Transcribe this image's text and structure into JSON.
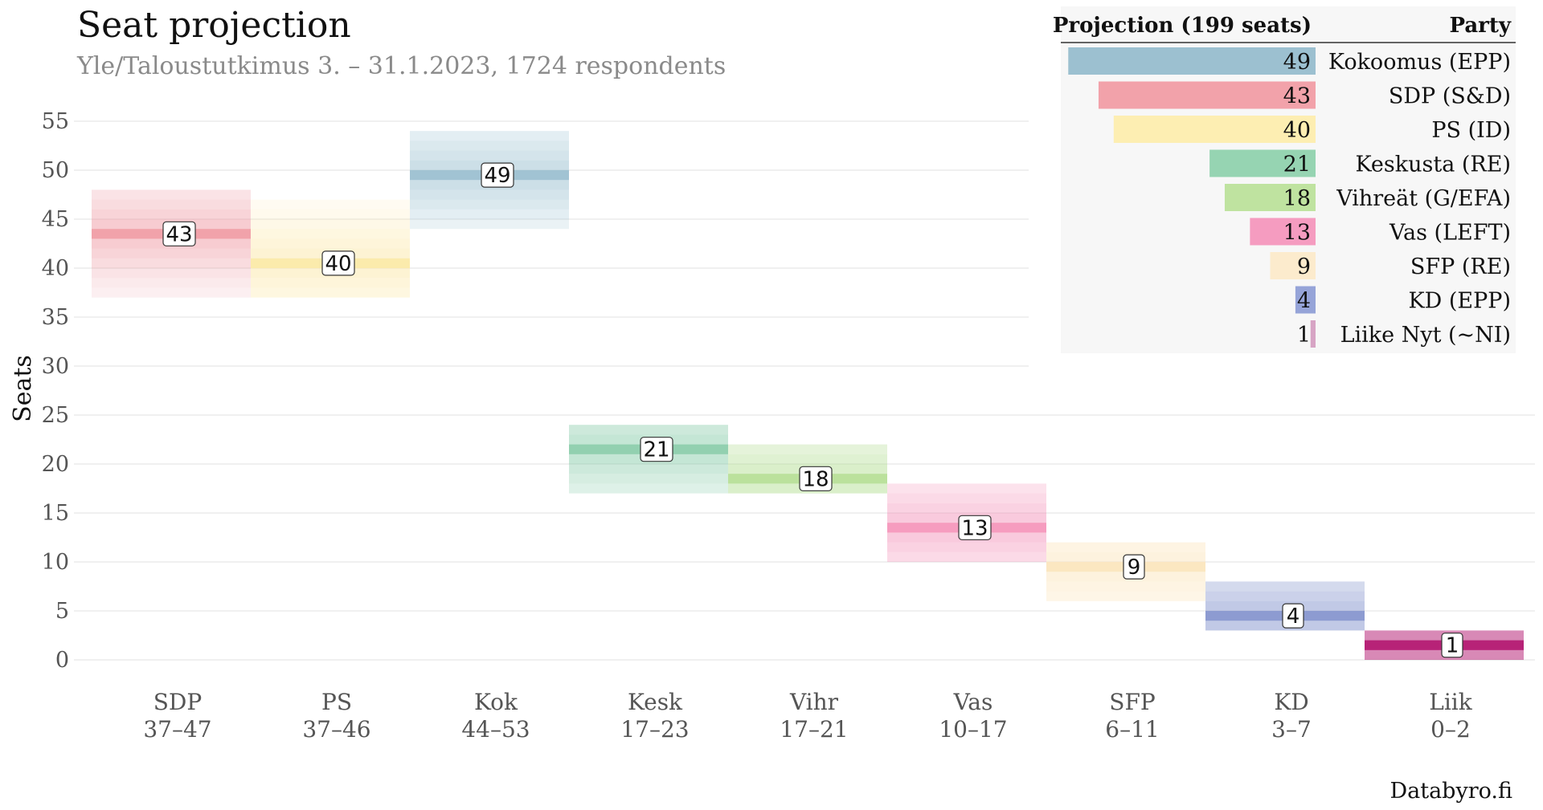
{
  "title": "Seat projection",
  "subtitle": "Yle/Taloustutkimus 3. – 31.1.2023, 1724 respondents",
  "source": "Databyro.fi",
  "chart_data": {
    "type": "bar",
    "ylabel": "Seats",
    "xlabel": "",
    "ylim": [
      0,
      56
    ],
    "yticks": [
      0,
      5,
      10,
      15,
      20,
      25,
      30,
      35,
      40,
      45,
      50,
      55
    ],
    "grid": true,
    "categories": [
      "SDP",
      "PS",
      "Kok",
      "Kesk",
      "Vihr",
      "Vas",
      "SFP",
      "KD",
      "Liik"
    ],
    "ranges": [
      "37–47",
      "37–46",
      "44–53",
      "17–23",
      "17–21",
      "10–17",
      "6–11",
      "3–7",
      "0–2"
    ],
    "values": [
      43,
      40,
      49,
      21,
      18,
      13,
      9,
      4,
      1
    ],
    "interval_low": [
      37,
      37,
      44,
      17,
      17,
      10,
      6,
      3,
      0
    ],
    "interval_high": [
      47,
      46,
      53,
      23,
      21,
      17,
      11,
      7,
      2
    ],
    "colors": [
      "#f0a0a8",
      "#fbeaaa",
      "#9fc2d2",
      "#8fcfae",
      "#b9e09a",
      "#f59abe",
      "#fbe6c0",
      "#8a99d0",
      "#b51e74"
    ]
  },
  "legend": {
    "header_left": "Projection (199 seats)",
    "header_right": "Party",
    "placement": "top-right",
    "max": 50,
    "rows": [
      {
        "party": "Kokoomus (EPP)",
        "value": 49,
        "color": "#9cc0d0"
      },
      {
        "party": "SDP (S&D)",
        "value": 43,
        "color": "#f2a2aa"
      },
      {
        "party": "PS (ID)",
        "value": 40,
        "color": "#fdeeb2"
      },
      {
        "party": "Keskusta (RE)",
        "value": 21,
        "color": "#96d4b2"
      },
      {
        "party": "Vihreät (G/EFA)",
        "value": 18,
        "color": "#bfe3a0"
      },
      {
        "party": "Vas (LEFT)",
        "value": 13,
        "color": "#f59cc0"
      },
      {
        "party": "SFP (RE)",
        "value": 9,
        "color": "#fcebcd"
      },
      {
        "party": "KD (EPP)",
        "value": 4,
        "color": "#96a4d8"
      },
      {
        "party": "Liike Nyt (~NI)",
        "value": 1,
        "color": "#d7a4c4"
      }
    ]
  }
}
